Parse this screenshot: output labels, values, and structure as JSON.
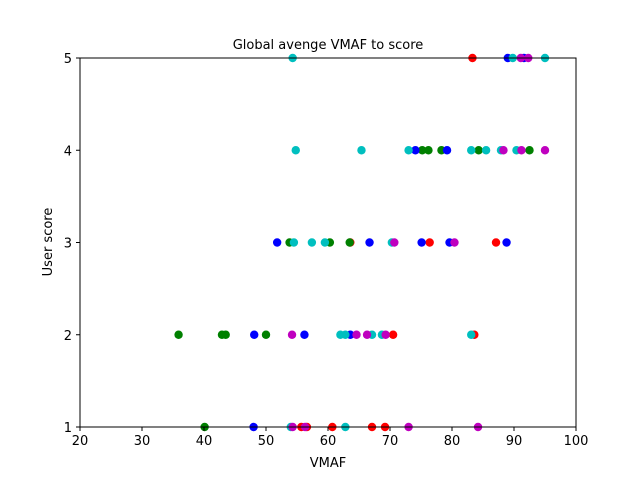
{
  "chart_data": {
    "type": "scatter",
    "title": "Global avenge VMAF to score",
    "xlabel": "VMAF",
    "ylabel": "User score",
    "xlim": [
      20,
      100
    ],
    "ylim": [
      1,
      5
    ],
    "xticks": [
      20,
      30,
      40,
      50,
      60,
      70,
      80,
      90,
      100
    ],
    "yticks": [
      1,
      2,
      3,
      4,
      5
    ],
    "grid": false,
    "legend": "none",
    "colors": {
      "red": "#ff0000",
      "green": "#008000",
      "blue": "#0000ff",
      "cyan": "#00bfbf",
      "magenta": "#bf00bf"
    },
    "series": [
      {
        "color": "#ff0000",
        "points": [
          {
            "x": 83.3,
            "y": 5
          },
          {
            "x": 63.6,
            "y": 3
          },
          {
            "x": 76.4,
            "y": 3
          },
          {
            "x": 87.1,
            "y": 3
          },
          {
            "x": 70.5,
            "y": 2
          },
          {
            "x": 83.6,
            "y": 2
          },
          {
            "x": 55.7,
            "y": 1
          },
          {
            "x": 56.6,
            "y": 1
          },
          {
            "x": 60.7,
            "y": 1
          },
          {
            "x": 67.1,
            "y": 1
          },
          {
            "x": 69.2,
            "y": 1
          }
        ]
      },
      {
        "color": "#008000",
        "points": [
          {
            "x": 75.2,
            "y": 4
          },
          {
            "x": 76.2,
            "y": 4
          },
          {
            "x": 78.3,
            "y": 4
          },
          {
            "x": 84.3,
            "y": 4
          },
          {
            "x": 92.5,
            "y": 4
          },
          {
            "x": 53.8,
            "y": 3
          },
          {
            "x": 60.3,
            "y": 3
          },
          {
            "x": 63.5,
            "y": 3
          },
          {
            "x": 35.9,
            "y": 2
          },
          {
            "x": 42.9,
            "y": 2
          },
          {
            "x": 43.5,
            "y": 2
          },
          {
            "x": 50.0,
            "y": 2
          },
          {
            "x": 40.1,
            "y": 1
          }
        ]
      },
      {
        "color": "#0000ff",
        "points": [
          {
            "x": 89.0,
            "y": 5
          },
          {
            "x": 91.6,
            "y": 5
          },
          {
            "x": 74.1,
            "y": 4
          },
          {
            "x": 79.2,
            "y": 4
          },
          {
            "x": 51.8,
            "y": 3
          },
          {
            "x": 66.7,
            "y": 3
          },
          {
            "x": 75.1,
            "y": 3
          },
          {
            "x": 79.6,
            "y": 3
          },
          {
            "x": 88.8,
            "y": 3
          },
          {
            "x": 48.1,
            "y": 2
          },
          {
            "x": 56.2,
            "y": 2
          },
          {
            "x": 63.6,
            "y": 2
          },
          {
            "x": 48.0,
            "y": 1
          }
        ]
      },
      {
        "color": "#00bfbf",
        "points": [
          {
            "x": 54.3,
            "y": 5
          },
          {
            "x": 89.8,
            "y": 5
          },
          {
            "x": 95.0,
            "y": 5
          },
          {
            "x": 54.8,
            "y": 4
          },
          {
            "x": 65.4,
            "y": 4
          },
          {
            "x": 73.0,
            "y": 4
          },
          {
            "x": 83.1,
            "y": 4
          },
          {
            "x": 85.5,
            "y": 4
          },
          {
            "x": 87.9,
            "y": 4
          },
          {
            "x": 90.4,
            "y": 4
          },
          {
            "x": 54.5,
            "y": 3
          },
          {
            "x": 57.4,
            "y": 3
          },
          {
            "x": 59.5,
            "y": 3
          },
          {
            "x": 70.3,
            "y": 3
          },
          {
            "x": 62.0,
            "y": 2
          },
          {
            "x": 62.8,
            "y": 2
          },
          {
            "x": 67.1,
            "y": 2
          },
          {
            "x": 68.7,
            "y": 2
          },
          {
            "x": 83.1,
            "y": 2
          },
          {
            "x": 54.0,
            "y": 1
          },
          {
            "x": 62.8,
            "y": 1
          }
        ]
      },
      {
        "color": "#bf00bf",
        "points": [
          {
            "x": 92.3,
            "y": 5
          },
          {
            "x": 91.1,
            "y": 5
          },
          {
            "x": 88.3,
            "y": 4
          },
          {
            "x": 91.2,
            "y": 4
          },
          {
            "x": 95.0,
            "y": 4
          },
          {
            "x": 70.7,
            "y": 3
          },
          {
            "x": 80.4,
            "y": 3
          },
          {
            "x": 54.2,
            "y": 2
          },
          {
            "x": 64.6,
            "y": 2
          },
          {
            "x": 66.3,
            "y": 2
          },
          {
            "x": 69.3,
            "y": 2
          },
          {
            "x": 54.3,
            "y": 1
          },
          {
            "x": 56.3,
            "y": 1
          },
          {
            "x": 73.0,
            "y": 1
          },
          {
            "x": 84.2,
            "y": 1
          }
        ]
      }
    ]
  }
}
